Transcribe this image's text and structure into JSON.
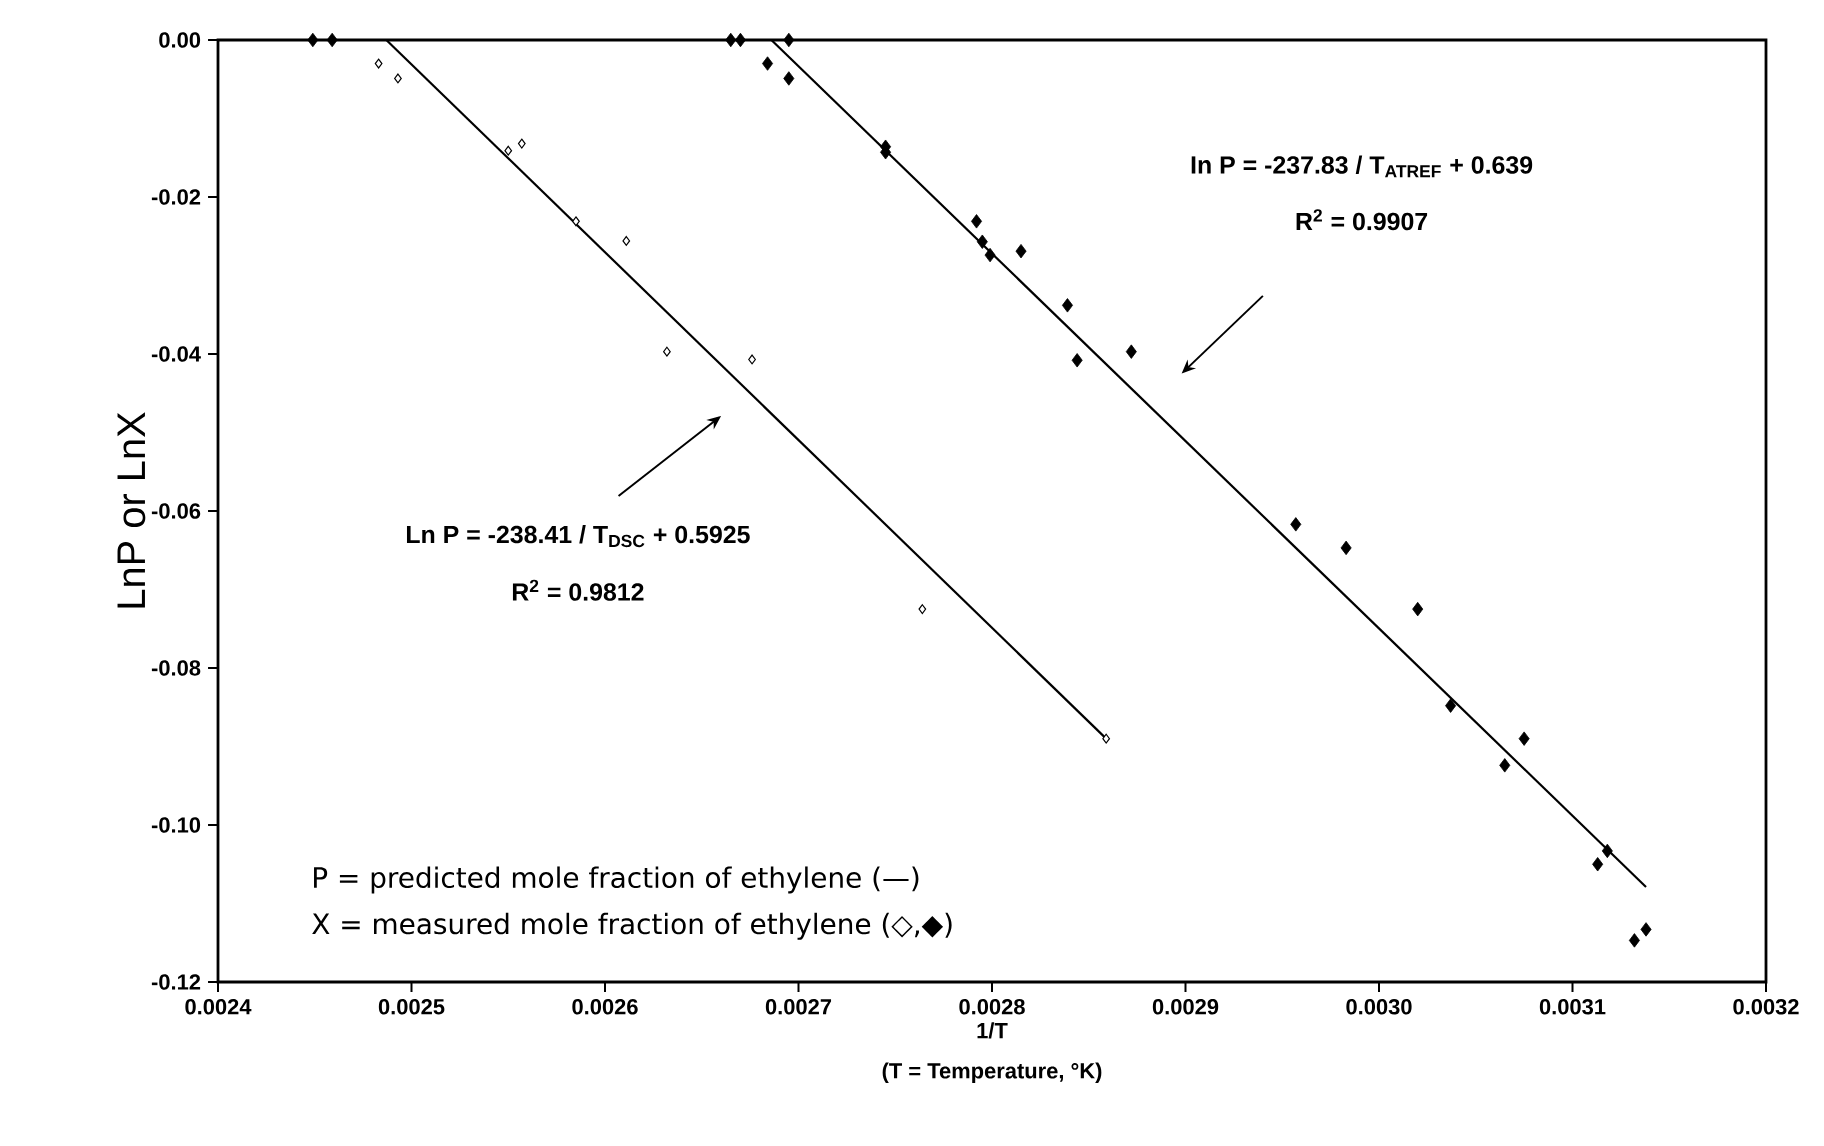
{
  "chart_data": {
    "type": "scatter",
    "xlabel": "1/T",
    "ylabel": "LnP or LnX",
    "xlim": [
      0.0024,
      0.0032
    ],
    "ylim": [
      -0.12,
      0
    ],
    "xticks": [
      0.0024,
      0.0025,
      0.0026,
      0.0027,
      0.0028,
      0.0029,
      {
        "value": 0.003,
        "label": "0.0030"
      },
      0.0031,
      0.0032
    ],
    "yticks": [
      {
        "value": -0.12,
        "label": "-0.12"
      },
      {
        "value": -0.1,
        "label": "-0.10"
      },
      {
        "value": -0.08,
        "label": "-0.08"
      },
      {
        "value": -0.06,
        "label": "-0.06"
      },
      {
        "value": -0.04,
        "label": "-0.04"
      },
      {
        "value": -0.02,
        "label": "-0.02"
      },
      {
        "value": 0,
        "label": "0.00"
      }
    ],
    "grid": false,
    "series": [
      {
        "marker": "diamond",
        "color": "#000000",
        "x": [
          0.002483,
          0.002493,
          0.00255,
          0.002557,
          0.002585,
          0.002611,
          0.002632,
          0.002676,
          0.002764,
          0.002859
        ],
        "values": [
          -0.003,
          -0.0049,
          -0.0141,
          -0.0132,
          -0.0231,
          -0.0256,
          -0.0397,
          -0.0407,
          -0.0725,
          -0.089
        ]
      },
      {
        "marker": "diamond",
        "color": "#000000",
        "x": [
          0.002449,
          0.002459,
          0.002665,
          0.00267,
          0.002695,
          0.002684,
          0.002695,
          0.002745,
          0.002745,
          0.002792,
          0.002795,
          0.002799,
          0.002815,
          0.002839,
          0.002844,
          0.002872,
          0.002957,
          0.002983,
          0.00302,
          0.003037,
          0.003075,
          0.003065,
          0.003113,
          0.003118,
          0.003132,
          0.003138
        ],
        "values": [
          0,
          0,
          0,
          0,
          0,
          -0.003,
          -0.0049,
          -0.0136,
          -0.0143,
          -0.0231,
          -0.0257,
          -0.0274,
          -0.0269,
          -0.0338,
          -0.0408,
          -0.0397,
          -0.0617,
          -0.0647,
          -0.0725,
          -0.0848,
          -0.089,
          -0.0924,
          -0.105,
          -0.1033,
          -0.1147,
          -0.1133
        ]
      },
      {
        "type": "line",
        "line_style": "solid",
        "color": "#000000",
        "x": [
          0.002487,
          0.002859
        ],
        "values": [
          0,
          -0.089
        ]
      },
      {
        "type": "line",
        "line_style": "solid",
        "color": "#000000",
        "x": [
          0.002686,
          0.003138
        ],
        "values": [
          0,
          -0.1079
        ]
      }
    ],
    "annotations": [
      "Ln P = -238.41 / T$_{DSC}$ + 0.5925",
      "R$^{2}$ = 0.9812",
      "In P = -237.83 / T$_{ATREF}$ + 0.639",
      "R$^{2}$ = 0.9907",
      "P = predicted mole fraction of ethylene (—)",
      "X = measured mole fraction of ethylene (◇,◆)",
      "(T =  Temperature, °K)"
    ]
  }
}
